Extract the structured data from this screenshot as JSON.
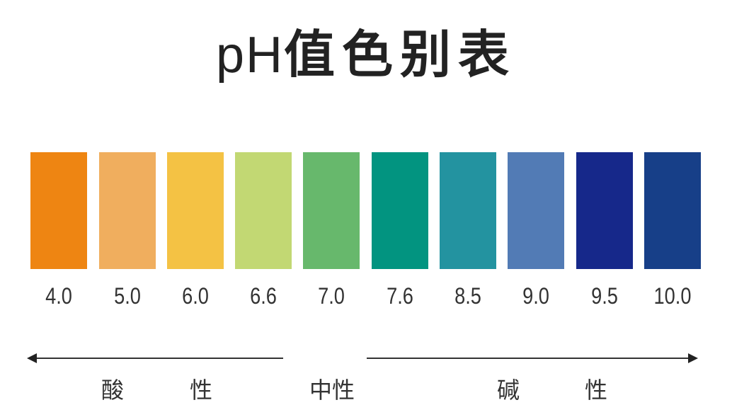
{
  "title": {
    "ph": "pH",
    "rest": "值色别表"
  },
  "scale": [
    {
      "value": "4.0",
      "color": "#EE8512"
    },
    {
      "value": "5.0",
      "color": "#F0AE5E"
    },
    {
      "value": "6.0",
      "color": "#F4C244"
    },
    {
      "value": "6.6",
      "color": "#C2D873"
    },
    {
      "value": "7.0",
      "color": "#67B86C"
    },
    {
      "value": "7.6",
      "color": "#029480"
    },
    {
      "value": "8.5",
      "color": "#2393A0"
    },
    {
      "value": "9.0",
      "color": "#527BB5"
    },
    {
      "value": "9.5",
      "color": "#16288A"
    },
    {
      "value": "10.0",
      "color": "#173F88"
    }
  ],
  "categories": {
    "acid_1": "酸",
    "acid_2": "性",
    "neutral": "中性",
    "base_1": "碱",
    "base_2": "性"
  }
}
